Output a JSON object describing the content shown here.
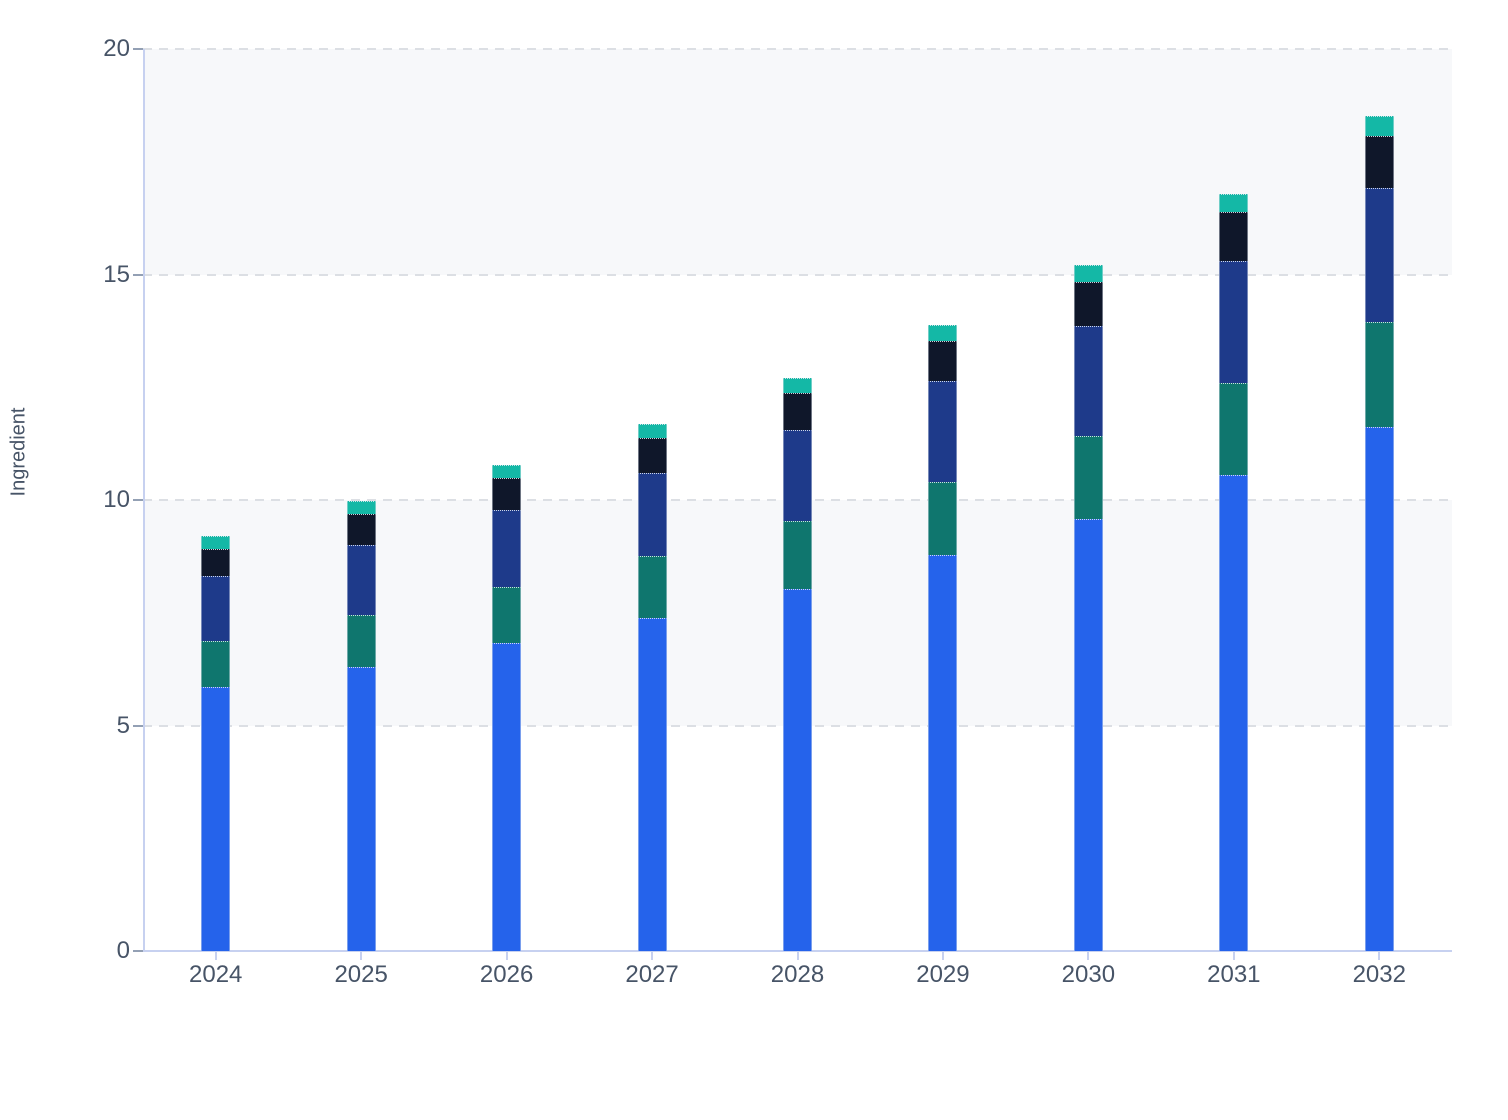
{
  "page": {
    "background_color": "#ffffff",
    "band_color": "#f7f8fa",
    "gridline_color": "#dcdfe4",
    "axis_line_color": "#c7d1f0",
    "tick_mark_color": "#93a0b4",
    "tick_label_color": "#475467"
  },
  "chart_data": {
    "type": "bar",
    "stacked": true,
    "title": "",
    "xlabel": "",
    "ylabel": "Ingredient",
    "legend": "none",
    "grid": "horizontal-dashed",
    "alternating_bands": [
      [
        5,
        10
      ],
      [
        15,
        20
      ]
    ],
    "ylim": [
      0,
      20
    ],
    "y_ticks": [
      0,
      5,
      10,
      15,
      20
    ],
    "y_tick_labels": [
      "0",
      "5",
      "10",
      "15",
      "20"
    ],
    "categories": [
      "2024",
      "2025",
      "2026",
      "2027",
      "2028",
      "2029",
      "2030",
      "2031",
      "2032"
    ],
    "series": [
      {
        "name": "blue",
        "color": "#2563eb",
        "values": [
          5.85,
          6.3,
          6.83,
          7.38,
          8.03,
          8.78,
          9.58,
          10.55,
          11.62
        ]
      },
      {
        "name": "teal",
        "color": "#0f766e",
        "values": [
          1.02,
          1.15,
          1.24,
          1.38,
          1.5,
          1.62,
          1.84,
          2.04,
          2.33
        ]
      },
      {
        "name": "navy",
        "color": "#1e3a8a",
        "values": [
          1.44,
          1.55,
          1.71,
          1.84,
          2.02,
          2.24,
          2.44,
          2.72,
          2.97
        ]
      },
      {
        "name": "dark-navy",
        "color": "#0f172a",
        "values": [
          0.6,
          0.69,
          0.71,
          0.78,
          0.82,
          0.89,
          0.97,
          1.07,
          1.15
        ]
      },
      {
        "name": "mint",
        "color": "#14b8a6",
        "values": [
          0.29,
          0.28,
          0.29,
          0.3,
          0.34,
          0.35,
          0.38,
          0.41,
          0.44
        ]
      }
    ],
    "totals": [
      9.2,
      9.97,
      10.78,
      11.68,
      12.71,
      13.88,
      15.21,
      16.79,
      18.51
    ]
  }
}
